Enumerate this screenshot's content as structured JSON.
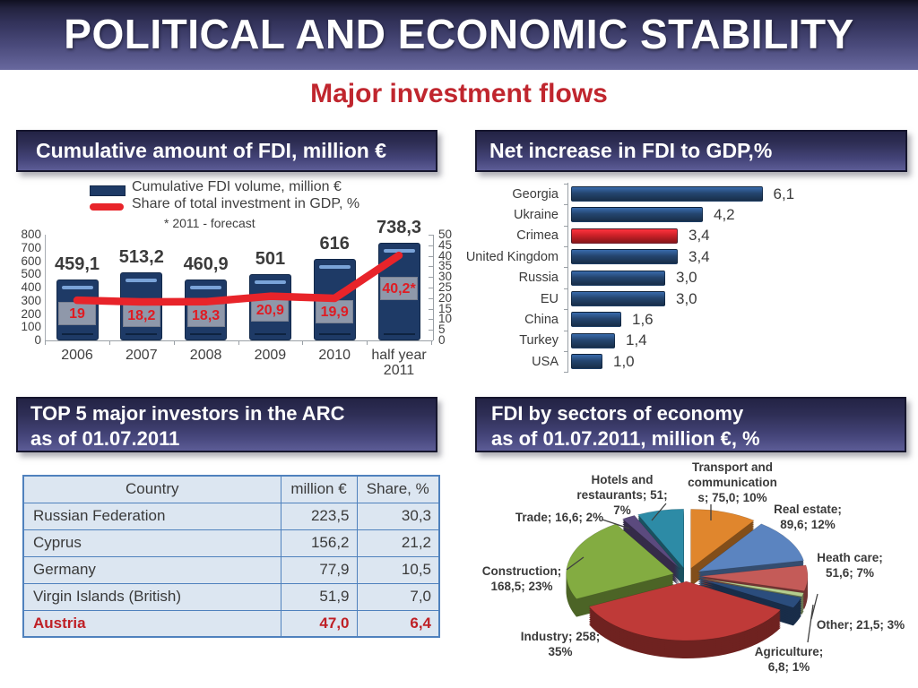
{
  "slide": {
    "title": "POLITICAL AND ECONOMIC STABILITY",
    "subtitle": "Major investment flows"
  },
  "panels": {
    "fdi_cumulative": {
      "title": "Cumulative amount of FDI, million €"
    },
    "net_increase": {
      "title": "Net increase in FDI to GDP,%"
    },
    "top5": {
      "title_line1": "TOP 5 major investors in the ARC",
      "title_line2": "as of 01.07.2011"
    },
    "sectors": {
      "title_line1": "FDI by sectors of economy",
      "title_line2": "as of 01.07.2011, million €, %"
    }
  },
  "chart_data": [
    {
      "id": "cumulative_fdi",
      "type": "bar",
      "title": "Cumulative amount of FDI, million €",
      "categories": [
        "2006",
        "2007",
        "2008",
        "2009",
        "2010",
        "half year\n2011"
      ],
      "series": [
        {
          "name": "Cumulative FDI volume, million €",
          "type": "bar",
          "axis": "left",
          "values": [
            459.1,
            513.2,
            460.9,
            501,
            616,
            738.3
          ],
          "labels": [
            "459,1",
            "513,2",
            "460,9",
            "501",
            "616",
            "738,3"
          ],
          "color": "#1e3a66"
        },
        {
          "name": "Share of total investment in GDP, %",
          "type": "line",
          "axis": "right",
          "values": [
            19,
            18.2,
            18.3,
            20.9,
            19.9,
            40.2
          ],
          "labels": [
            "19",
            "18,2",
            "18,3",
            "20,9",
            "19,9",
            "40,2*"
          ],
          "color": "#e8242a"
        }
      ],
      "left_axis": {
        "min": 0,
        "max": 800,
        "step": 100
      },
      "right_axis": {
        "min": 0,
        "max": 50,
        "step": 5
      },
      "note": "* 2011 - forecast",
      "grid": false,
      "legend_position": "top"
    },
    {
      "id": "net_increase_fdi_gdp",
      "type": "bar",
      "orientation": "horizontal",
      "title": "Net increase in FDI to GDP,%",
      "categories": [
        "Georgia",
        "Ukraine",
        "Crimea",
        "United Kingdom",
        "Russia",
        "EU",
        "China",
        "Turkey",
        "USA"
      ],
      "values": [
        6.1,
        4.2,
        3.4,
        3.4,
        3.0,
        3.0,
        1.6,
        1.4,
        1.0
      ],
      "labels": [
        "6,1",
        "4,2",
        "3,4",
        "3,4",
        "3,0",
        "3,0",
        "1,6",
        "1,4",
        "1,0"
      ],
      "highlight_index": 2,
      "bar_color": "#24456f",
      "highlight_color": "#cc2128",
      "xlim": [
        0,
        6.5
      ]
    },
    {
      "id": "top5_investors",
      "type": "table",
      "title": "TOP 5 major investors in the ARC as of 01.07.2011",
      "columns": [
        "Country",
        "million €",
        "Share, %"
      ],
      "rows": [
        {
          "cells": [
            "Russian Federation",
            "223,5",
            "30,3"
          ],
          "highlight": false
        },
        {
          "cells": [
            "Cyprus",
            "156,2",
            "21,2"
          ],
          "highlight": false
        },
        {
          "cells": [
            "Germany",
            "77,9",
            "10,5"
          ],
          "highlight": false
        },
        {
          "cells": [
            "Virgin Islands (British)",
            "51,9",
            "7,0"
          ],
          "highlight": false
        },
        {
          "cells": [
            "Austria",
            "47,0",
            "6,4"
          ],
          "highlight": true
        }
      ],
      "highlight_color": "#bf2026"
    },
    {
      "id": "fdi_by_sectors",
      "type": "pie",
      "title": "FDI by sectors of economy as of 01.07.2011, million €, %",
      "slices": [
        {
          "name": "Transport and communications",
          "value": 75.0,
          "percent": 10,
          "color": "#e0862d",
          "label_lines": [
            "Transport and",
            "communication",
            "s; 75,0; 10%"
          ]
        },
        {
          "name": "Real estate",
          "value": 89.6,
          "percent": 12,
          "color": "#5b84c0",
          "label_lines": [
            "Real estate;",
            "89,6; 12%"
          ]
        },
        {
          "name": "Heath care",
          "value": 51.6,
          "percent": 7,
          "color": "#c45b58",
          "label_lines": [
            "Heath care;",
            "51,6; 7%"
          ]
        },
        {
          "name": "Agriculture",
          "value": 6.8,
          "percent": 1,
          "color": "#b5cd8d",
          "label_lines": [
            "Agriculture;",
            "6,8; 1%"
          ]
        },
        {
          "name": "Other",
          "value": 21.5,
          "percent": 3,
          "color": "#2b4d7d",
          "label_lines": [
            "Other; 21,5; 3%"
          ]
        },
        {
          "name": "Industry",
          "value": 258,
          "percent": 35,
          "color": "#bf3a38",
          "label_lines": [
            "Industry; 258;",
            "35%"
          ]
        },
        {
          "name": "Construction",
          "value": 168.5,
          "percent": 23,
          "color": "#83ac41",
          "label_lines": [
            "Construction;",
            "168,5; 23%"
          ]
        },
        {
          "name": "Trade",
          "value": 16.6,
          "percent": 2,
          "color": "#5b4a7e",
          "label_lines": [
            "Trade; 16,6; 2%"
          ]
        },
        {
          "name": "Hotels and restaurants",
          "value": 51,
          "percent": 7,
          "color": "#2d8ba6",
          "label_lines": [
            "Hotels and",
            "restaurants; 51;",
            "7%"
          ]
        }
      ]
    }
  ]
}
